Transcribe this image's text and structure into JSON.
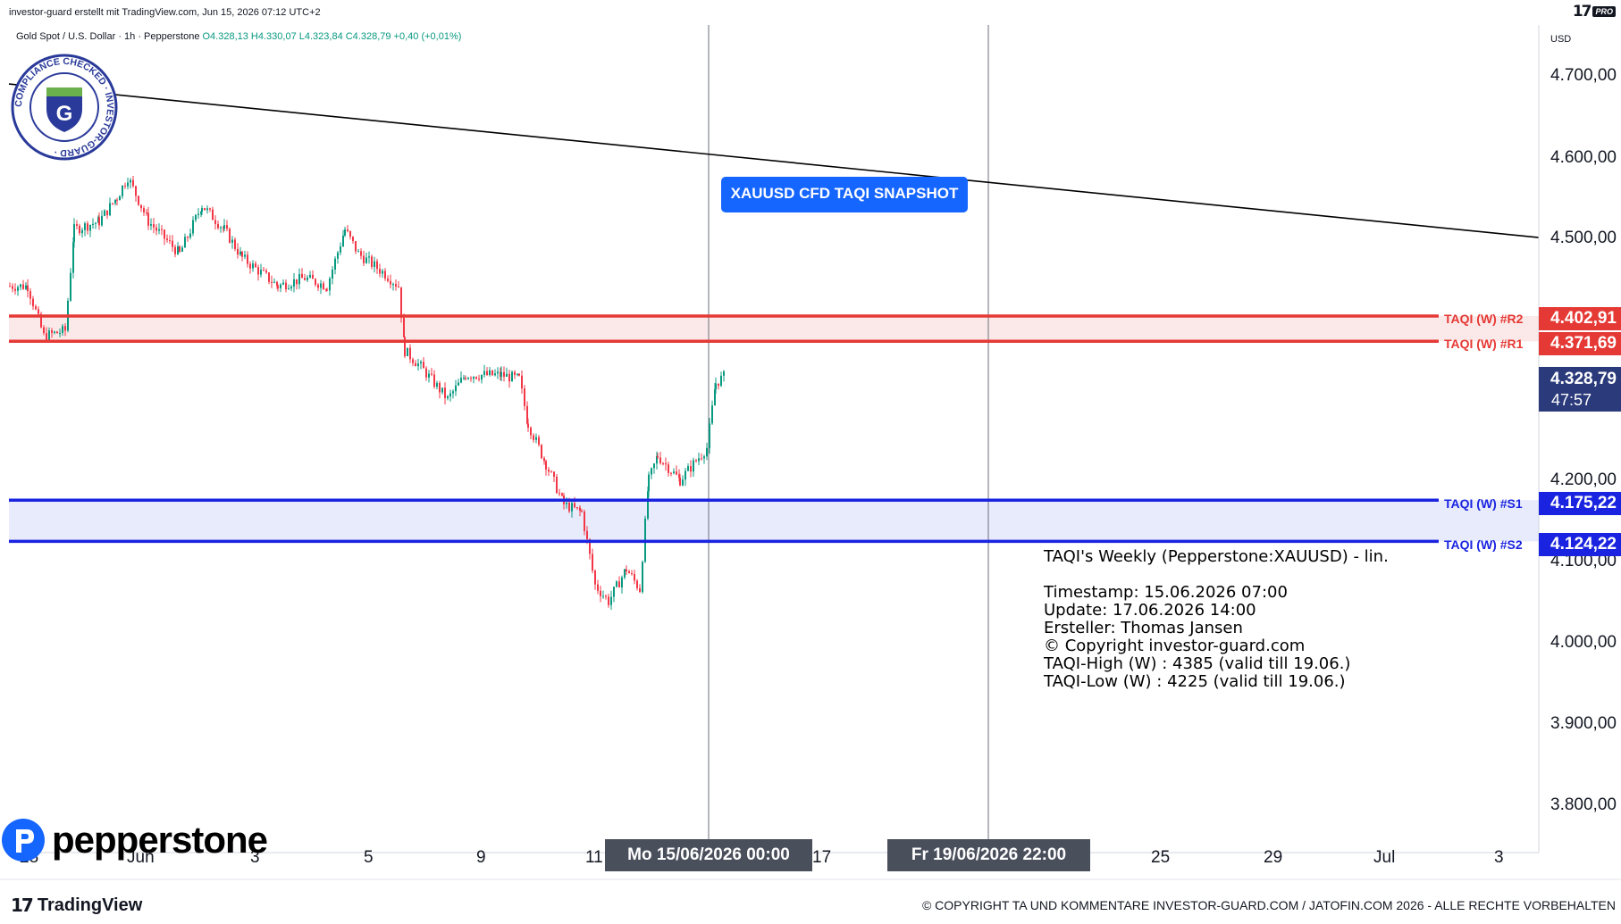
{
  "header": {
    "author_line": "investor-guard erstellt mit TradingView.com, Jun 15, 2026 07:12 UTC+2",
    "tv_pro_label": "PRO"
  },
  "legend": {
    "symbol": "Gold Spot / U.S. Dollar · 1h · Pepperstone",
    "ohlc": "O4.328,13  H4.330,07  L4.323,84  C4.328,79  +0,40 (+0,01%)"
  },
  "badge": {
    "text": "COMPLIANCE CHECKED · INVESTOR-GUARD ·",
    "letter": "G"
  },
  "snapshot_label": "XAUUSD CFD TAQI SNAPSHOT",
  "info_box": {
    "title": "TAQI's Weekly (Pepperstone:XAUUSD) - lin.",
    "lines": [
      "Timestamp: 15.06.2026 07:00",
      "Update: 17.06.2026 14:00",
      "Ersteller: Thomas Jansen",
      "© Copyright investor-guard.com",
      "TAQI-High (W) : 4385 (valid till 19.06.)",
      "TAQI-Low (W) : 4225 (valid till 19.06.)"
    ]
  },
  "price_axis": {
    "currency": "USD",
    "ticks": [
      "4.700,00",
      "4.600,00",
      "4.500,00",
      "4.200,00",
      "4.100,00",
      "4.000,00",
      "3.900,00",
      "3.800,00"
    ]
  },
  "levels": [
    {
      "name": "TAQI (W) #R2",
      "value": "4.402,91",
      "color": "#e53935"
    },
    {
      "name": "TAQI (W) #R1",
      "value": "4.371,69",
      "color": "#e53935"
    },
    {
      "name": "TAQI (W) #S1",
      "value": "4.175,22",
      "color": "#1a24e0"
    },
    {
      "name": "TAQI (W) #S2",
      "value": "4.124,22",
      "color": "#1a24e0"
    }
  ],
  "current_price": {
    "value": "4.328,79",
    "countdown": "47:57",
    "color": "#2a3a7a"
  },
  "time_axis": {
    "ticks": [
      "28",
      "Jun",
      "3",
      "5",
      "9",
      "11",
      "17",
      "25",
      "29",
      "Jul",
      "3"
    ],
    "cursor_labels": [
      "Mo 15/06/2026   00:00",
      "Fr 19/06/2026   22:00"
    ]
  },
  "footer": {
    "copyright": "© COPYRIGHT TA UND KOMMENTARE INVESTOR-GUARD.COM / JATOFIN.COM 2026 - ALLE RECHTE VORBEHALTEN",
    "tradingview": "TradingView",
    "pepperstone": "pepperstone"
  },
  "colors": {
    "up": "#089981",
    "down": "#f23645",
    "resistance": "#e53935",
    "support": "#1a24e0",
    "snapshot": "#1565ff"
  },
  "chart_data": {
    "type": "candlestick",
    "title": "Gold Spot / U.S. Dollar · 1h · Pepperstone",
    "ylim": [
      3750,
      4760
    ],
    "x_ticks": [
      "28",
      "Jun",
      "3",
      "5",
      "9",
      "11",
      "15",
      "17",
      "19",
      "25",
      "29",
      "Jul",
      "3"
    ],
    "price_path_approx": [
      {
        "x": "28 May",
        "close": 4440
      },
      {
        "x": "29 May",
        "close": 4380
      },
      {
        "x": "1 Jun",
        "close": 4510
      },
      {
        "x": "1 Jun",
        "close": 4560
      },
      {
        "x": "2 Jun",
        "close": 4470
      },
      {
        "x": "3 Jun",
        "close": 4530
      },
      {
        "x": "4 Jun",
        "close": 4440
      },
      {
        "x": "5 Jun",
        "close": 4490
      },
      {
        "x": "6 Jun",
        "close": 4420
      },
      {
        "x": "8 Jun",
        "close": 4330
      },
      {
        "x": "9 Jun",
        "close": 4320
      },
      {
        "x": "10 Jun",
        "close": 4250
      },
      {
        "x": "11 Jun",
        "close": 4170
      },
      {
        "x": "12 Jun",
        "close": 4040
      },
      {
        "x": "12 Jun",
        "close": 4090
      },
      {
        "x": "13 Jun",
        "close": 4230
      },
      {
        "x": "14 Jun",
        "close": 4210
      },
      {
        "x": "15 Jun",
        "close": 4328.79
      }
    ],
    "horizontal_levels": [
      {
        "name": "TAQI (W) #R2",
        "value": 4402.91
      },
      {
        "name": "TAQI (W) #R1",
        "value": 4371.69
      },
      {
        "name": "TAQI (W) #S1",
        "value": 4175.22
      },
      {
        "name": "TAQI (W) #S2",
        "value": 4124.22
      }
    ],
    "trendline": [
      {
        "x": "28 May",
        "y": 4690
      },
      {
        "x": "3 Jul",
        "y": 4500
      }
    ],
    "last_price": 4328.79
  }
}
